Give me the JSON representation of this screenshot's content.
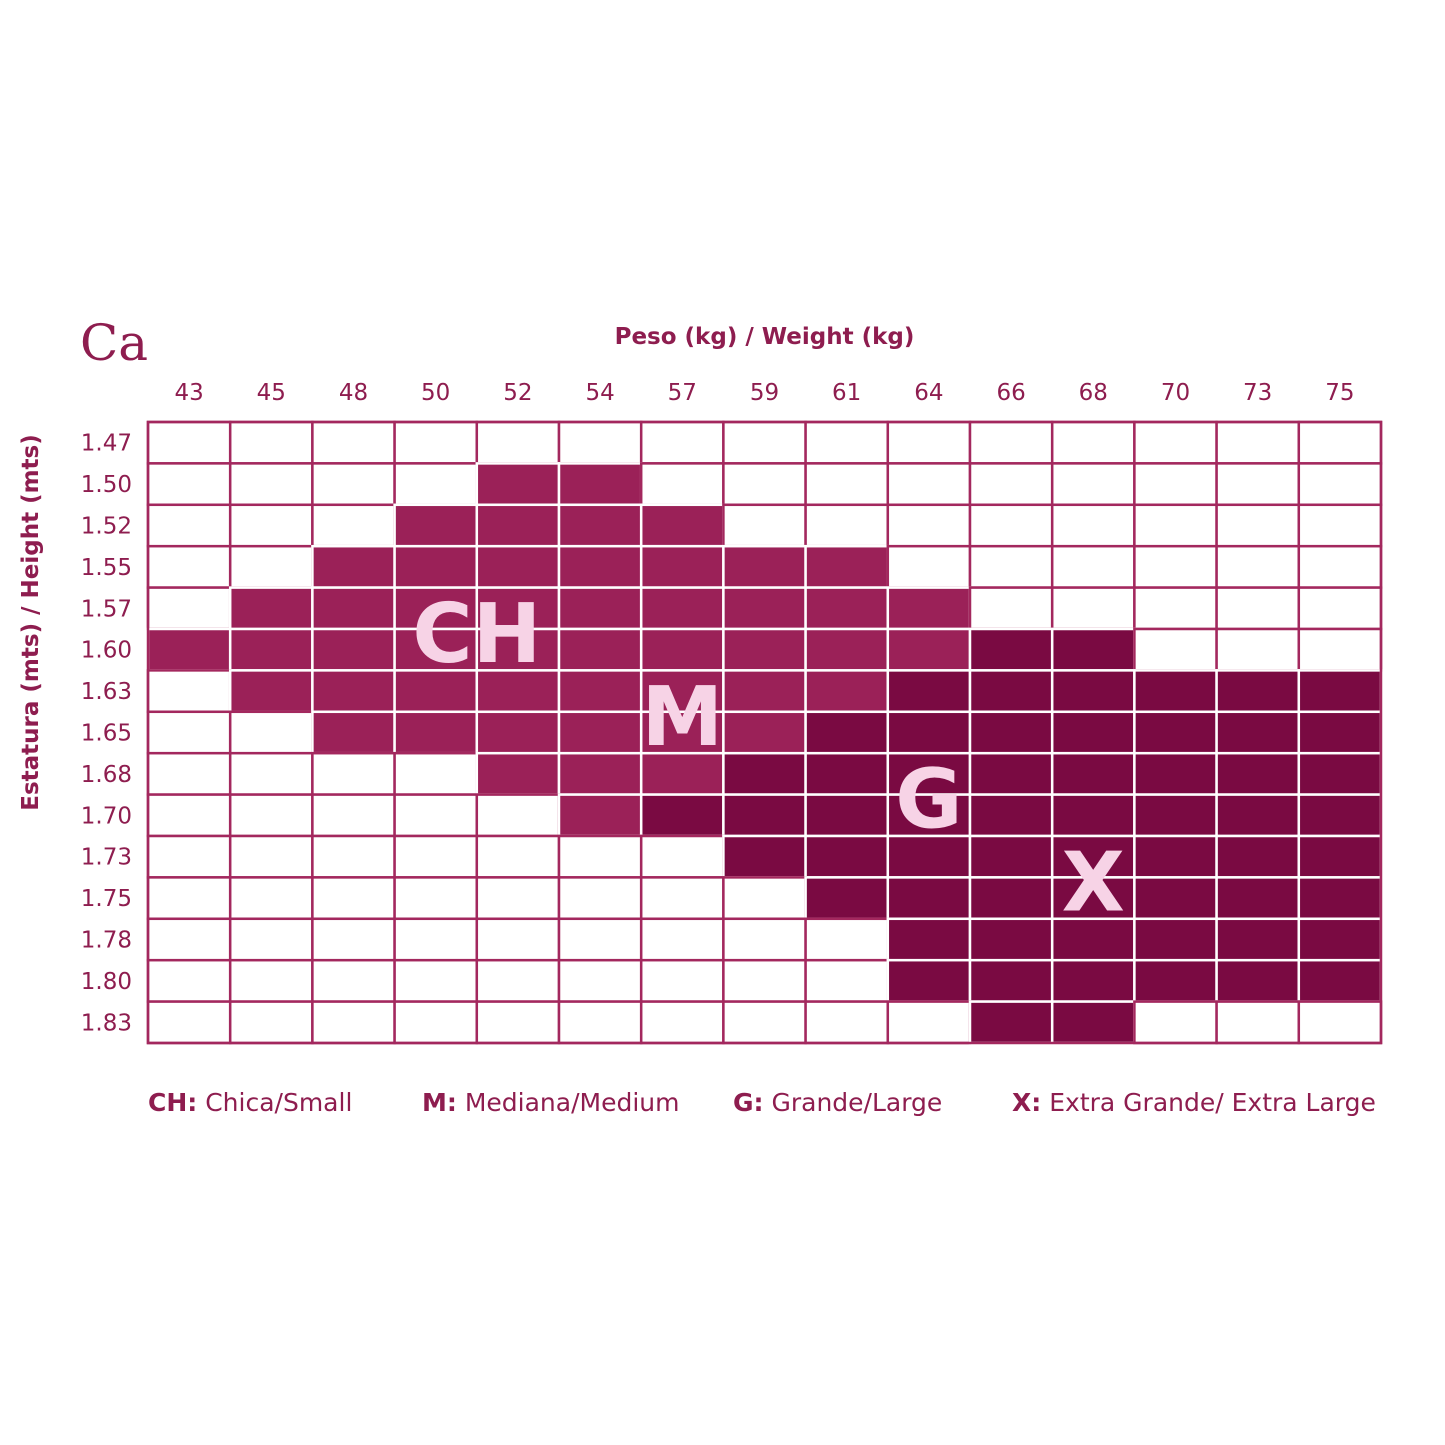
{
  "brand": {
    "logo_text": "Ca"
  },
  "colors": {
    "accent": "#8e1d4f",
    "grid": "#a3285e",
    "empty": "#ffffff",
    "letters": "#f7d3e6",
    "sizes": {
      "CH": "#9b2158",
      "M": "#9b2158",
      "G": "#7a0a42",
      "X": "#7a0a42"
    }
  },
  "chart_data": {
    "type": "heatmap",
    "title": "",
    "xlabel": "Peso (kg) / Weight (kg)",
    "ylabel": "Estatura (mts) / Height (mts)",
    "x": [
      "43",
      "45",
      "48",
      "50",
      "52",
      "54",
      "57",
      "59",
      "61",
      "64",
      "66",
      "68",
      "70",
      "73",
      "75"
    ],
    "y": [
      "1.47",
      "1.50",
      "1.52",
      "1.55",
      "1.57",
      "1.60",
      "1.63",
      "1.65",
      "1.68",
      "1.70",
      "1.73",
      "1.75",
      "1.78",
      "1.80",
      "1.83"
    ],
    "cells": [
      [
        "",
        "",
        "",
        "",
        "",
        "",
        "",
        "",
        "",
        "",
        "",
        "",
        "",
        "",
        ""
      ],
      [
        "",
        "",
        "",
        "",
        "CH",
        "CH",
        "",
        "",
        "",
        "",
        "",
        "",
        "",
        "",
        ""
      ],
      [
        "",
        "",
        "",
        "CH",
        "CH",
        "CH",
        "CH",
        "",
        "",
        "",
        "",
        "",
        "",
        "",
        ""
      ],
      [
        "",
        "",
        "CH",
        "CH",
        "CH",
        "CH",
        "CH",
        "M",
        "M",
        "",
        "",
        "",
        "",
        "",
        ""
      ],
      [
        "",
        "CH",
        "CH",
        "CH",
        "CH",
        "M",
        "M",
        "M",
        "M",
        "M",
        "",
        "",
        "",
        "",
        ""
      ],
      [
        "CH",
        "CH",
        "CH",
        "CH",
        "CH",
        "M",
        "M",
        "M",
        "M",
        "M",
        "G",
        "G",
        "",
        "",
        ""
      ],
      [
        "",
        "CH",
        "CH",
        "CH",
        "CH",
        "M",
        "M",
        "M",
        "M",
        "G",
        "G",
        "G",
        "X",
        "X",
        "X"
      ],
      [
        "",
        "",
        "CH",
        "CH",
        "CH",
        "M",
        "M",
        "M",
        "G",
        "G",
        "G",
        "G",
        "X",
        "X",
        "X"
      ],
      [
        "",
        "",
        "",
        "",
        "CH",
        "M",
        "M",
        "G",
        "G",
        "G",
        "G",
        "G",
        "X",
        "X",
        "X"
      ],
      [
        "",
        "",
        "",
        "",
        "",
        "M",
        "G",
        "G",
        "G",
        "G",
        "G",
        "X",
        "X",
        "X",
        "X"
      ],
      [
        "",
        "",
        "",
        "",
        "",
        "",
        "",
        "G",
        "G",
        "G",
        "G",
        "X",
        "X",
        "X",
        "X"
      ],
      [
        "",
        "",
        "",
        "",
        "",
        "",
        "",
        "",
        "G",
        "G",
        "X",
        "X",
        "X",
        "X",
        "X"
      ],
      [
        "",
        "",
        "",
        "",
        "",
        "",
        "",
        "",
        "",
        "X",
        "X",
        "X",
        "X",
        "X",
        "X"
      ],
      [
        "",
        "",
        "",
        "",
        "",
        "",
        "",
        "",
        "",
        "X",
        "X",
        "X",
        "X",
        "X",
        "X"
      ],
      [
        "",
        "",
        "",
        "",
        "",
        "",
        "",
        "",
        "",
        "",
        "X",
        "X",
        "",
        "",
        ""
      ]
    ],
    "region_labels": [
      "CH",
      "M",
      "G",
      "X"
    ],
    "legend": [
      {
        "code": "CH:",
        "text": " Chica/Small"
      },
      {
        "code": "M:",
        "text": " Mediana/Medium"
      },
      {
        "code": "G:",
        "text": " Grande/Large"
      },
      {
        "code": "X:",
        "text": " Extra Grande/ Extra Large"
      }
    ],
    "legend_position": "bottom"
  }
}
